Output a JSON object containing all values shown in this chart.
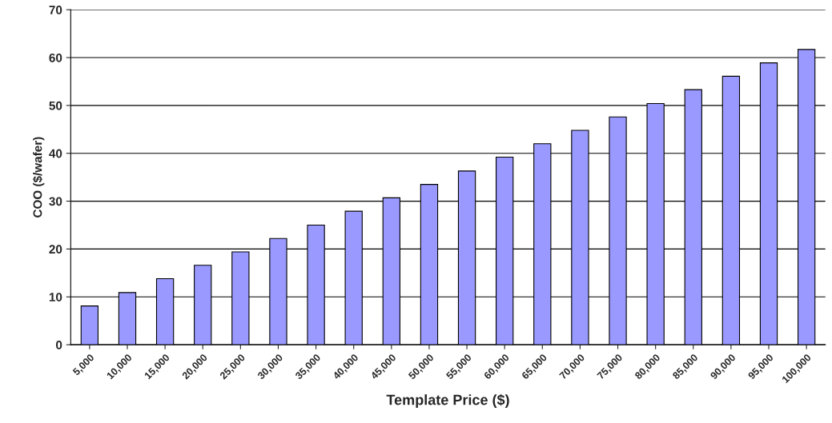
{
  "chart_data": {
    "type": "bar",
    "xlabel": "Template Price ($)",
    "ylabel": "COO ($/wafer)",
    "categories": [
      "5,000",
      "10,000",
      "15,000",
      "20,000",
      "25,000",
      "30,000",
      "35,000",
      "40,000",
      "45,000",
      "50,000",
      "55,000",
      "60,000",
      "65,000",
      "70,000",
      "75,000",
      "80,000",
      "85,000",
      "90,000",
      "95,000",
      "100,000"
    ],
    "values": [
      8.1,
      10.9,
      13.8,
      16.6,
      19.4,
      22.2,
      25.0,
      27.9,
      30.7,
      33.5,
      36.3,
      39.2,
      42.0,
      44.8,
      47.6,
      50.4,
      53.3,
      56.1,
      58.9,
      61.7
    ],
    "color": "#9999ff",
    "ylim": [
      0,
      70
    ],
    "yticks": [
      0,
      10,
      20,
      30,
      40,
      50,
      60,
      70
    ],
    "grid": "y",
    "legend": false
  }
}
